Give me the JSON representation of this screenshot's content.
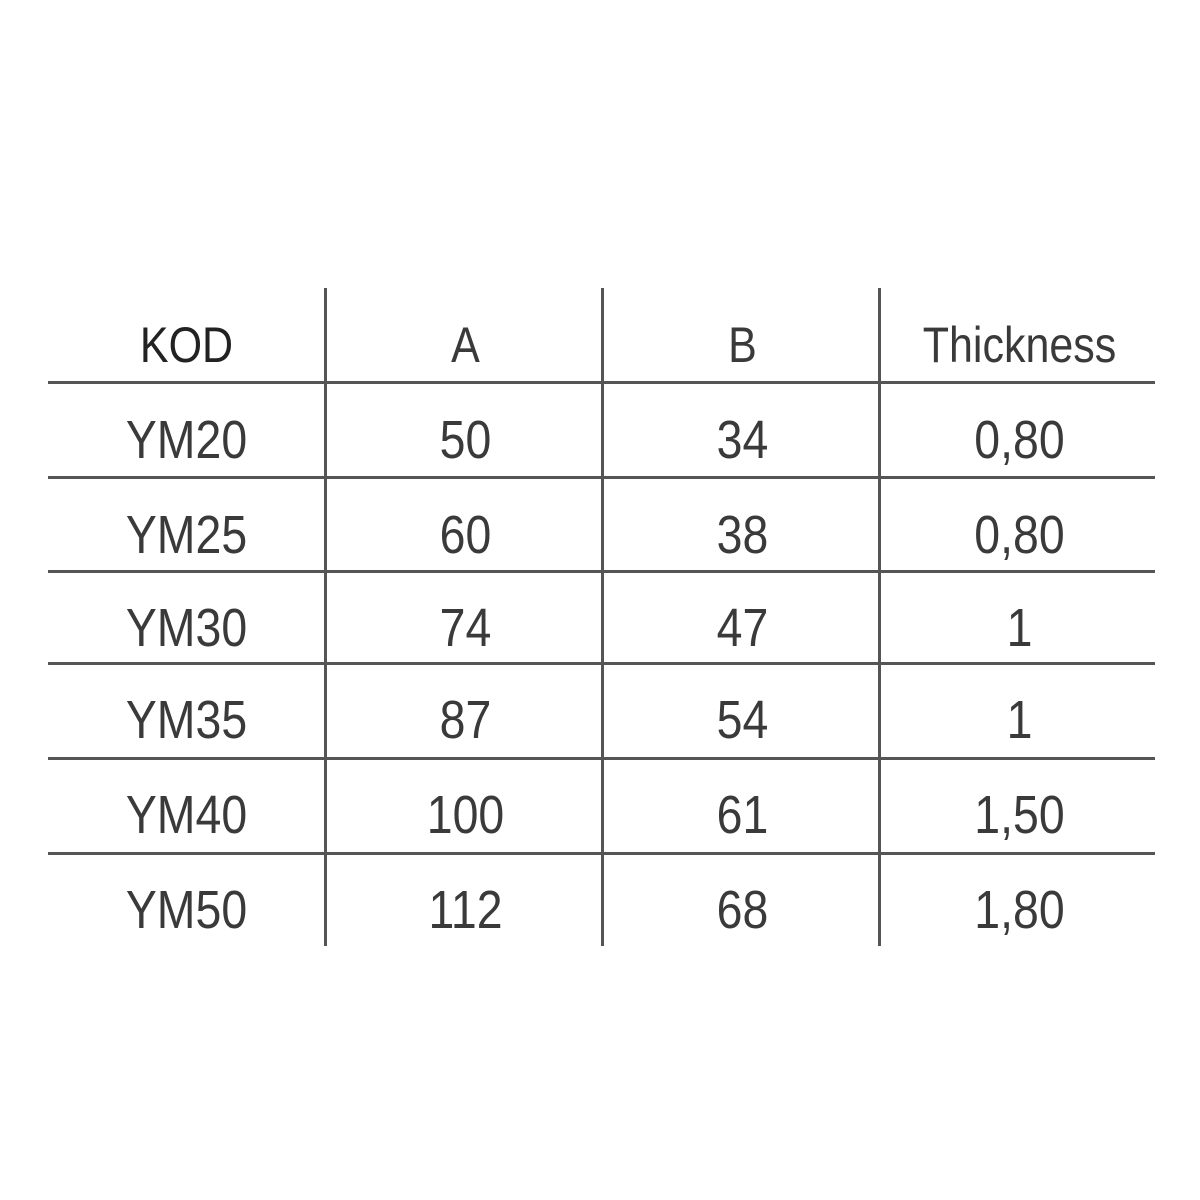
{
  "table": {
    "headers": [
      "KOD",
      "A",
      "B",
      "Thickness"
    ],
    "rows": [
      [
        "YM20",
        "50",
        "34",
        "0,80"
      ],
      [
        "YM25",
        "60",
        "38",
        "0,80"
      ],
      [
        "YM30",
        "74",
        "47",
        "1"
      ],
      [
        "YM35",
        "87",
        "54",
        "1"
      ],
      [
        "YM40",
        "100",
        "61",
        "1,50"
      ],
      [
        "YM50",
        "112",
        "68",
        "1,80"
      ]
    ]
  },
  "colors": {
    "lines": "#555555",
    "text": "#3a3a3a"
  }
}
